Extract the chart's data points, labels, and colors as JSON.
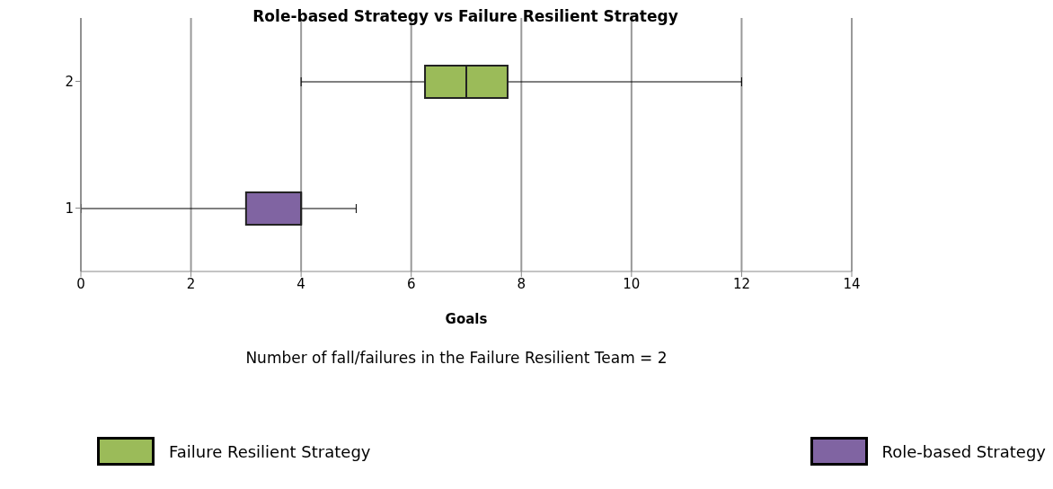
{
  "chart_data": {
    "type": "box",
    "title": "Role-based Strategy vs Failure Resilient Strategy",
    "xlabel": "Goals",
    "orientation": "horizontal",
    "categories": [
      "2",
      "1"
    ],
    "series": [
      {
        "name": "Failure Resilient Strategy",
        "color": "#9bbb59",
        "boxes": [
          {
            "low": 4,
            "q1": 6.25,
            "median": 7,
            "q3": 7.75,
            "high": 12
          },
          null
        ]
      },
      {
        "name": "Role-based Strategy",
        "color": "#8064a2",
        "boxes": [
          null,
          {
            "low": 0,
            "q1": 3,
            "median": 4,
            "q3": 4,
            "high": 5
          }
        ]
      }
    ],
    "xlim": [
      0,
      14
    ],
    "xticks": [
      0,
      2,
      4,
      6,
      8,
      10,
      12,
      14
    ],
    "grid": "x",
    "legend": "bottom",
    "annotations": [
      "Number of fall/failures in the Failure Resilient Team = 2"
    ]
  }
}
